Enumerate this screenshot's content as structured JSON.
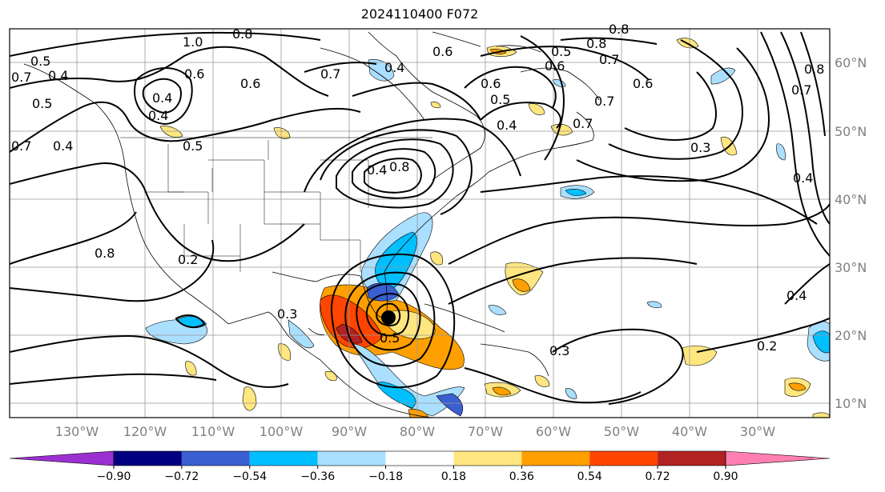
{
  "title": "2024110400 F072",
  "lon_labels": [
    "130°W",
    "120°W",
    "110°W",
    "100°W",
    "90°W",
    "80°W",
    "70°W",
    "60°W",
    "50°W",
    "40°W",
    "30°W"
  ],
  "lat_labels": [
    "60°N",
    "50°N",
    "40°N",
    "30°N",
    "20°N",
    "10°N"
  ],
  "colorbar": {
    "colors": [
      "#9b30d0",
      "#000080",
      "#3a5fd0",
      "#00bfff",
      "#aadfff",
      "#ffffff",
      "#ffe680",
      "#ffa000",
      "#ff4500",
      "#b22222",
      "#ff80b0"
    ],
    "ticks": [
      "−0.90",
      "−0.72",
      "−0.54",
      "−0.36",
      "−0.18",
      "0.18",
      "0.36",
      "0.54",
      "0.72",
      "0.90"
    ]
  },
  "contour_labels": [
    "1.0",
    "0.8",
    "0.5",
    "0.4",
    "0.7",
    "0.6",
    "0.4",
    "0.7",
    "0.4",
    "0.5",
    "0.4",
    "0.5",
    "0.4",
    "0.6",
    "0.7",
    "0.8",
    "0.6",
    "0.7",
    "0.5",
    "0.8",
    "0.7",
    "0.6",
    "0.4",
    "0.7",
    "0.3",
    "0.5",
    "0.4",
    "0.7",
    "0.8",
    "0.8",
    "0.2",
    "0.4",
    "0.3",
    "0.5",
    "0.3",
    "0.8",
    "0.2",
    "0.4",
    "0.6",
    "0.6"
  ],
  "storm_marker": "storm-center"
}
